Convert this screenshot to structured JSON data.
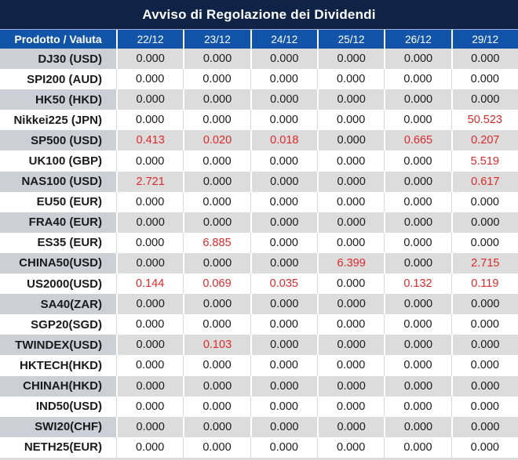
{
  "title": "Avviso di Regolazione dei Dividendi",
  "colors": {
    "title_bar_bg": "#0f2347",
    "header_bg": "#1254a8",
    "alt_row_product_bg": "#cbd0d6",
    "alt_row_value_bg": "#dcdcdc",
    "plain_row_bg": "#ffffff",
    "value_text": "#1a1a1a",
    "highlight_red": "#e02929",
    "header_text": "#ffffff"
  },
  "table": {
    "product_header": "Prodotto / Valuta",
    "date_headers": [
      "22/12",
      "23/12",
      "24/12",
      "25/12",
      "26/12",
      "29/12"
    ],
    "rows": [
      {
        "product": "DJ30 (USD)",
        "values": [
          "0.000",
          "0.000",
          "0.000",
          "0.000",
          "0.000",
          "0.000"
        ],
        "red": [
          false,
          false,
          false,
          false,
          false,
          false
        ]
      },
      {
        "product": "SPI200 (AUD)",
        "values": [
          "0.000",
          "0.000",
          "0.000",
          "0.000",
          "0.000",
          "0.000"
        ],
        "red": [
          false,
          false,
          false,
          false,
          false,
          false
        ]
      },
      {
        "product": "HK50 (HKD)",
        "values": [
          "0.000",
          "0.000",
          "0.000",
          "0.000",
          "0.000",
          "0.000"
        ],
        "red": [
          false,
          false,
          false,
          false,
          false,
          false
        ]
      },
      {
        "product": "Nikkei225 (JPN)",
        "values": [
          "0.000",
          "0.000",
          "0.000",
          "0.000",
          "0.000",
          "50.523"
        ],
        "red": [
          false,
          false,
          false,
          false,
          false,
          true
        ]
      },
      {
        "product": "SP500 (USD)",
        "values": [
          "0.413",
          "0.020",
          "0.018",
          "0.000",
          "0.665",
          "0.207"
        ],
        "red": [
          true,
          true,
          true,
          false,
          true,
          true
        ]
      },
      {
        "product": "UK100 (GBP)",
        "values": [
          "0.000",
          "0.000",
          "0.000",
          "0.000",
          "0.000",
          "5.519"
        ],
        "red": [
          false,
          false,
          false,
          false,
          false,
          true
        ]
      },
      {
        "product": "NAS100 (USD)",
        "values": [
          "2.721",
          "0.000",
          "0.000",
          "0.000",
          "0.000",
          "0.617"
        ],
        "red": [
          true,
          false,
          false,
          false,
          false,
          true
        ]
      },
      {
        "product": "EU50 (EUR)",
        "values": [
          "0.000",
          "0.000",
          "0.000",
          "0.000",
          "0.000",
          "0.000"
        ],
        "red": [
          false,
          false,
          false,
          false,
          false,
          false
        ]
      },
      {
        "product": "FRA40 (EUR)",
        "values": [
          "0.000",
          "0.000",
          "0.000",
          "0.000",
          "0.000",
          "0.000"
        ],
        "red": [
          false,
          false,
          false,
          false,
          false,
          false
        ]
      },
      {
        "product": "ES35 (EUR)",
        "values": [
          "0.000",
          "6.885",
          "0.000",
          "0.000",
          "0.000",
          "0.000"
        ],
        "red": [
          false,
          true,
          false,
          false,
          false,
          false
        ]
      },
      {
        "product": "CHINA50(USD)",
        "values": [
          "0.000",
          "0.000",
          "0.000",
          "6.399",
          "0.000",
          "2.715"
        ],
        "red": [
          false,
          false,
          false,
          true,
          false,
          true
        ]
      },
      {
        "product": "US2000(USD)",
        "values": [
          "0.144",
          "0.069",
          "0.035",
          "0.000",
          "0.132",
          "0.119"
        ],
        "red": [
          true,
          true,
          true,
          false,
          true,
          true
        ]
      },
      {
        "product": "SA40(ZAR)",
        "values": [
          "0.000",
          "0.000",
          "0.000",
          "0.000",
          "0.000",
          "0.000"
        ],
        "red": [
          false,
          false,
          false,
          false,
          false,
          false
        ]
      },
      {
        "product": "SGP20(SGD)",
        "values": [
          "0.000",
          "0.000",
          "0.000",
          "0.000",
          "0.000",
          "0.000"
        ],
        "red": [
          false,
          false,
          false,
          false,
          false,
          false
        ]
      },
      {
        "product": "TWINDEX(USD)",
        "values": [
          "0.000",
          "0.103",
          "0.000",
          "0.000",
          "0.000",
          "0.000"
        ],
        "red": [
          false,
          true,
          false,
          false,
          false,
          false
        ]
      },
      {
        "product": "HKTECH(HKD)",
        "values": [
          "0.000",
          "0.000",
          "0.000",
          "0.000",
          "0.000",
          "0.000"
        ],
        "red": [
          false,
          false,
          false,
          false,
          false,
          false
        ]
      },
      {
        "product": "CHINAH(HKD)",
        "values": [
          "0.000",
          "0.000",
          "0.000",
          "0.000",
          "0.000",
          "0.000"
        ],
        "red": [
          false,
          false,
          false,
          false,
          false,
          false
        ]
      },
      {
        "product": "IND50(USD)",
        "values": [
          "0.000",
          "0.000",
          "0.000",
          "0.000",
          "0.000",
          "0.000"
        ],
        "red": [
          false,
          false,
          false,
          false,
          false,
          false
        ]
      },
      {
        "product": "SWI20(CHF)",
        "values": [
          "0.000",
          "0.000",
          "0.000",
          "0.000",
          "0.000",
          "0.000"
        ],
        "red": [
          false,
          false,
          false,
          false,
          false,
          false
        ]
      },
      {
        "product": "NETH25(EUR)",
        "values": [
          "0.000",
          "0.000",
          "0.000",
          "0.000",
          "0.000",
          "0.000"
        ],
        "red": [
          false,
          false,
          false,
          false,
          false,
          false
        ]
      }
    ]
  }
}
